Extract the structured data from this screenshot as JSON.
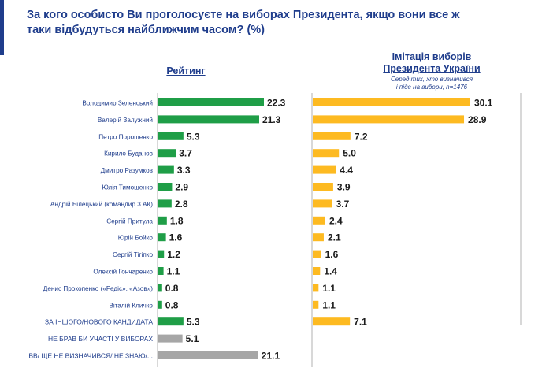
{
  "title": "За кого особисто Ви проголосуєте на виборах Президента, якщо вони все ж таки відбудуться найближчим часом? (%)",
  "header_rating": "Рейтинг",
  "header_sim_line1": "Імітація виборів",
  "header_sim_line2": "Президента України",
  "header_sim_note_line1": "Серед тих, хто визначився",
  "header_sim_note_line2": "і піде на вибори, n=1476",
  "colors": {
    "green": "#1f9e47",
    "gray": "#a6a6a6",
    "yellow": "#fdba21",
    "navy": "#1f3d8c"
  },
  "chart_data": {
    "type": "bar",
    "orientation": "horizontal",
    "title": "За кого особисто Ви проголосуєте на виборах Президента, якщо вони все ж таки відбудуться найближчим часом? (%)",
    "categories": [
      "Володимир Зеленський",
      "Валерій Залужний",
      "Петро Порошенко",
      "Кирило Буданов",
      "Дмитро Разумков",
      "Юлія Тимошенко",
      "Андрій Білецький (командир 3 АК)",
      "Сергій Притула",
      "Юрій Бойко",
      "Сергій Тігіпко",
      "Олексій Гончаренко",
      "Денис Прокопенко («Редіс», «Азов»)",
      "Віталій Кличко",
      "ЗА ІНШОГО/НОВОГО КАНДИДАТА",
      "НЕ БРАВ БИ УЧАСТІ У ВИБОРАХ",
      "ВВ/ ЩЕ НЕ ВИЗНАЧИВСЯ/ НЕ ЗНАЮ/..."
    ],
    "series": [
      {
        "name": "Рейтинг",
        "values": [
          22.3,
          21.3,
          5.3,
          3.7,
          3.3,
          2.9,
          2.8,
          1.8,
          1.6,
          1.2,
          1.1,
          0.8,
          0.8,
          5.3,
          5.1,
          21.1
        ],
        "colors": [
          "green",
          "green",
          "green",
          "green",
          "green",
          "green",
          "green",
          "green",
          "green",
          "green",
          "green",
          "green",
          "green",
          "green",
          "gray",
          "gray"
        ]
      },
      {
        "name": "Імітація виборів Президента України",
        "values": [
          30.1,
          28.9,
          7.2,
          5.0,
          4.4,
          3.9,
          3.7,
          2.4,
          2.1,
          1.6,
          1.4,
          1.1,
          1.1,
          7.1,
          null,
          null
        ],
        "colors": [
          "yellow",
          "yellow",
          "yellow",
          "yellow",
          "yellow",
          "yellow",
          "yellow",
          "yellow",
          "yellow",
          "yellow",
          "yellow",
          "yellow",
          "yellow",
          "yellow",
          "yellow",
          "yellow"
        ]
      }
    ],
    "xlim_rating": [
      0,
      22.3
    ],
    "xlim_sim": [
      0,
      30.1
    ],
    "xlabel": "",
    "ylabel": ""
  }
}
